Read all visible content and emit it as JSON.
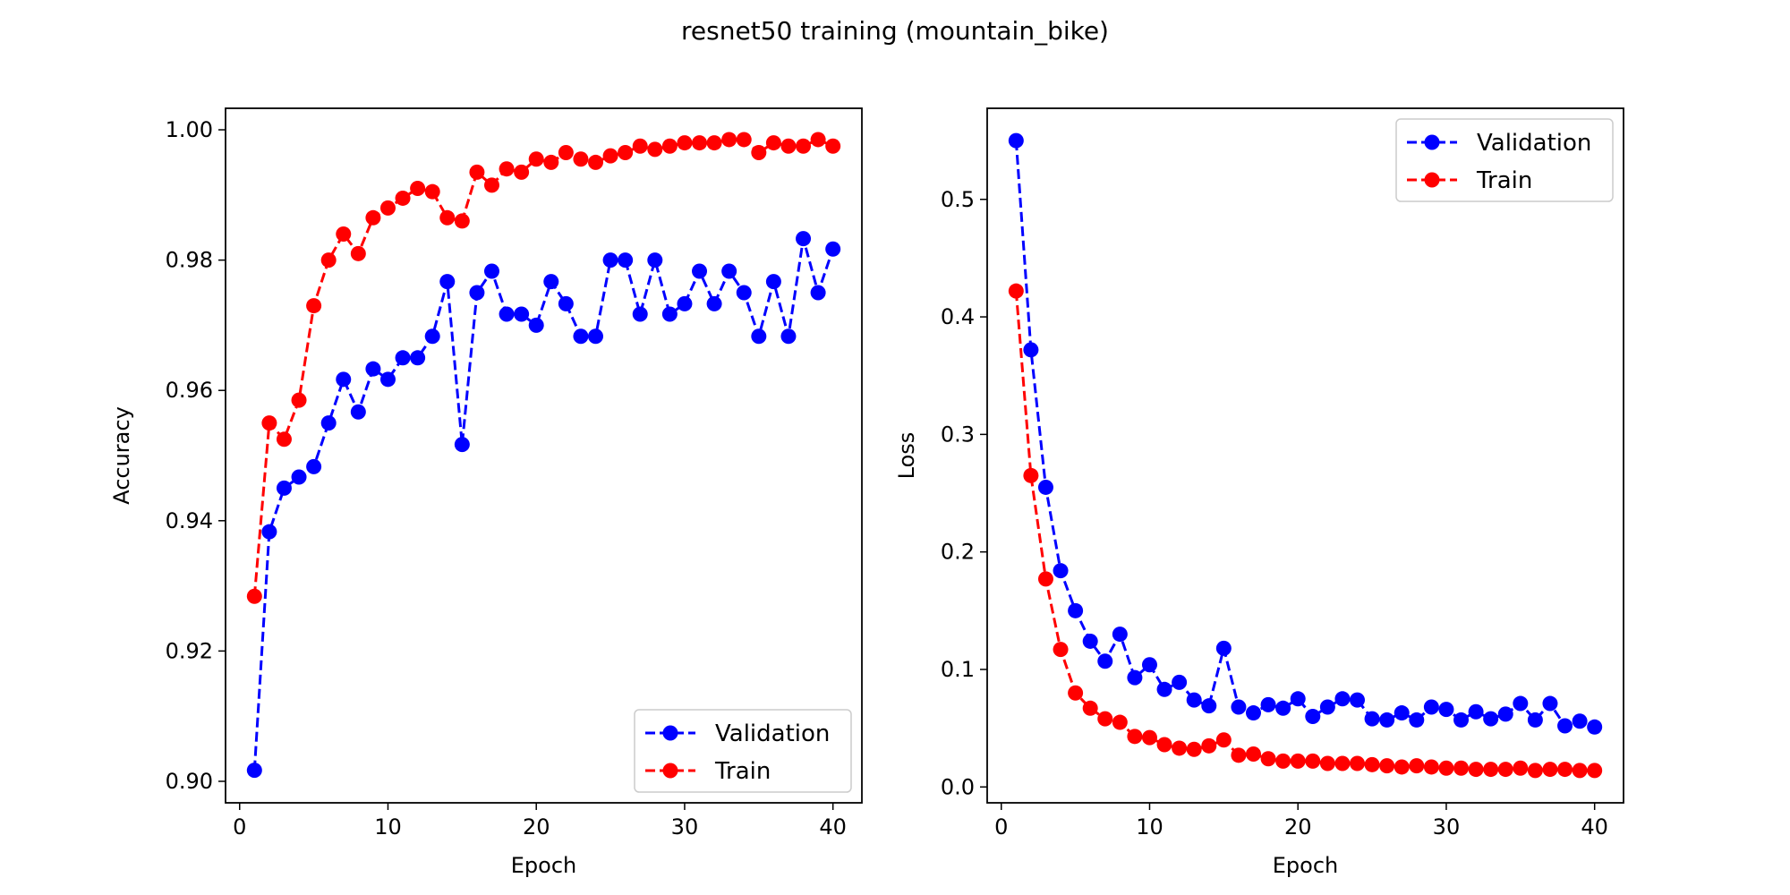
{
  "title": "resnet50 training (mountain_bike)",
  "chart_data": [
    {
      "type": "line",
      "xlabel": "Epoch",
      "ylabel": "Accuracy",
      "xlim": [
        -0.95,
        41.95
      ],
      "ylim": [
        0.8967,
        1.0033
      ],
      "xticks": [
        0,
        10,
        20,
        30,
        40
      ],
      "yticks": [
        0.9,
        0.92,
        0.94,
        0.96,
        0.98,
        1.0
      ],
      "ytick_labels": [
        "0.90",
        "0.92",
        "0.94",
        "0.96",
        "0.98",
        "1.00"
      ],
      "legend_position": "lower-right",
      "x": [
        1,
        2,
        3,
        4,
        5,
        6,
        7,
        8,
        9,
        10,
        11,
        12,
        13,
        14,
        15,
        16,
        17,
        18,
        19,
        20,
        21,
        22,
        23,
        24,
        25,
        26,
        27,
        28,
        29,
        30,
        31,
        32,
        33,
        34,
        35,
        36,
        37,
        38,
        39,
        40
      ],
      "series": [
        {
          "name": "Validation",
          "color": "#0000ff",
          "values": [
            0.9017,
            0.9383,
            0.945,
            0.9467,
            0.9483,
            0.955,
            0.9617,
            0.9567,
            0.9633,
            0.9617,
            0.965,
            0.965,
            0.9683,
            0.9767,
            0.9517,
            0.975,
            0.9783,
            0.9717,
            0.9717,
            0.97,
            0.9767,
            0.9733,
            0.9683,
            0.9683,
            0.98,
            0.98,
            0.9717,
            0.98,
            0.9717,
            0.9733,
            0.9783,
            0.9733,
            0.9783,
            0.975,
            0.9683,
            0.9767,
            0.9683,
            0.9833,
            0.975,
            0.9817
          ]
        },
        {
          "name": "Train",
          "color": "#ff0000",
          "values": [
            0.9284,
            0.955,
            0.9525,
            0.9585,
            0.973,
            0.98,
            0.984,
            0.981,
            0.9865,
            0.988,
            0.9895,
            0.991,
            0.9905,
            0.9865,
            0.986,
            0.9935,
            0.9915,
            0.994,
            0.9935,
            0.9955,
            0.995,
            0.9965,
            0.9955,
            0.995,
            0.996,
            0.9965,
            0.9975,
            0.997,
            0.9975,
            0.998,
            0.998,
            0.998,
            0.9985,
            0.9985,
            0.9965,
            0.998,
            0.9975,
            0.9975,
            0.9985,
            0.9975
          ]
        }
      ]
    },
    {
      "type": "line",
      "xlabel": "Epoch",
      "ylabel": "Loss",
      "xlim": [
        -0.95,
        41.95
      ],
      "ylim": [
        -0.0135,
        0.5775
      ],
      "xticks": [
        0,
        10,
        20,
        30,
        40
      ],
      "yticks": [
        0.0,
        0.1,
        0.2,
        0.3,
        0.4,
        0.5
      ],
      "ytick_labels": [
        "0.0",
        "0.1",
        "0.2",
        "0.3",
        "0.4",
        "0.5"
      ],
      "legend_position": "upper-right",
      "x": [
        1,
        2,
        3,
        4,
        5,
        6,
        7,
        8,
        9,
        10,
        11,
        12,
        13,
        14,
        15,
        16,
        17,
        18,
        19,
        20,
        21,
        22,
        23,
        24,
        25,
        26,
        27,
        28,
        29,
        30,
        31,
        32,
        33,
        34,
        35,
        36,
        37,
        38,
        39,
        40
      ],
      "series": [
        {
          "name": "Validation",
          "color": "#0000ff",
          "values": [
            0.55,
            0.372,
            0.255,
            0.184,
            0.15,
            0.124,
            0.107,
            0.13,
            0.093,
            0.104,
            0.083,
            0.089,
            0.074,
            0.069,
            0.118,
            0.068,
            0.063,
            0.07,
            0.067,
            0.075,
            0.06,
            0.068,
            0.075,
            0.074,
            0.058,
            0.057,
            0.063,
            0.057,
            0.068,
            0.066,
            0.057,
            0.064,
            0.058,
            0.062,
            0.071,
            0.057,
            0.071,
            0.052,
            0.056,
            0.051
          ]
        },
        {
          "name": "Train",
          "color": "#ff0000",
          "values": [
            0.422,
            0.265,
            0.177,
            0.117,
            0.08,
            0.067,
            0.058,
            0.055,
            0.043,
            0.042,
            0.036,
            0.033,
            0.032,
            0.035,
            0.04,
            0.027,
            0.028,
            0.024,
            0.022,
            0.022,
            0.022,
            0.02,
            0.02,
            0.02,
            0.019,
            0.018,
            0.017,
            0.018,
            0.017,
            0.016,
            0.016,
            0.015,
            0.015,
            0.015,
            0.016,
            0.014,
            0.015,
            0.015,
            0.014,
            0.014
          ]
        }
      ]
    }
  ]
}
